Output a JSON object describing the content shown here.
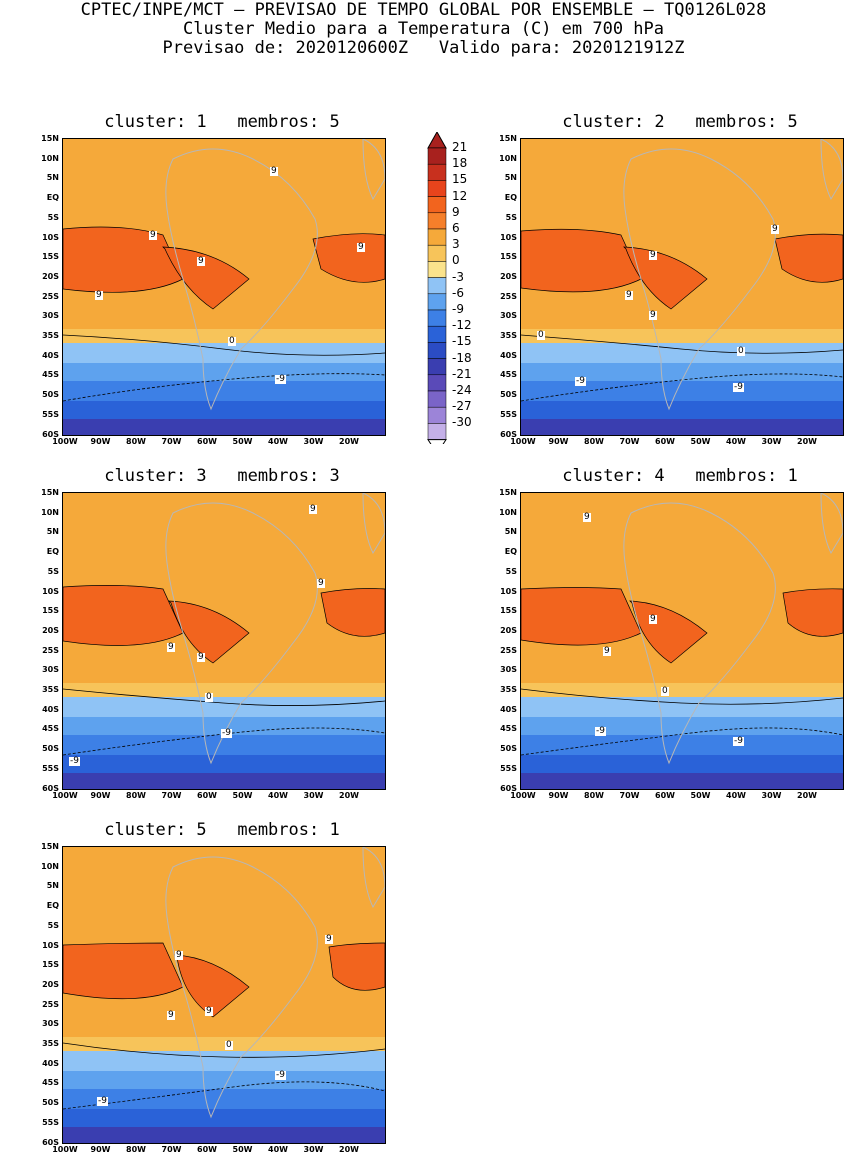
{
  "header": {
    "line1": "CPTEC/INPE/MCT – PREVISAO DE TEMPO GLOBAL POR ENSEMBLE – TQ0126L028",
    "line2": "Cluster Medio para a Temperatura (C) em 700 hPa",
    "line3": "Previsao de: 2020120600Z   Valido para: 2020121912Z"
  },
  "panels": [
    {
      "title": "cluster: 1   membros: 5",
      "labels": [
        "9",
        "9",
        "9",
        "9",
        "9",
        "0",
        "-9"
      ]
    },
    {
      "title": "cluster: 2   membros: 5",
      "labels": [
        "9",
        "9",
        "9",
        "9",
        "0",
        "0",
        "-9",
        "-9"
      ]
    },
    {
      "title": "cluster: 3   membros: 3",
      "labels": [
        "9",
        "9",
        "9",
        "9",
        "0",
        "-9",
        "-9"
      ]
    },
    {
      "title": "cluster: 4   membros: 1",
      "labels": [
        "9",
        "9",
        "9",
        "0",
        "-9",
        "-9"
      ]
    },
    {
      "title": "cluster: 5   membros: 1",
      "labels": [
        "9",
        "9",
        "9",
        "9",
        "0",
        "-9",
        "-9"
      ]
    }
  ],
  "axes": {
    "lat_labels": [
      "15N",
      "10N",
      "5N",
      "EQ",
      "5S",
      "10S",
      "15S",
      "20S",
      "25S",
      "30S",
      "35S",
      "40S",
      "45S",
      "50S",
      "55S",
      "60S"
    ],
    "lon_labels": [
      "100W",
      "90W",
      "80W",
      "70W",
      "60W",
      "50W",
      "40W",
      "30W",
      "20W"
    ]
  },
  "colorbar": {
    "labels": [
      "21",
      "18",
      "15",
      "12",
      "9",
      "6",
      "3",
      "0",
      "-3",
      "-6",
      "-9",
      "-12",
      "-15",
      "-18",
      "-21",
      "-24",
      "-27",
      "-30"
    ],
    "colors": [
      "#a8211e",
      "#c8301e",
      "#e8441c",
      "#f2641e",
      "#f57f2a",
      "#f5a93a",
      "#f7c45a",
      "#fbe38c",
      "#8fc3f5",
      "#5ea2ee",
      "#3d80e6",
      "#2a62d8",
      "#2b4cc4",
      "#3a3eb0",
      "#5a4ab8",
      "#7a64c8",
      "#9c84d8",
      "#c4b0e8"
    ]
  }
}
